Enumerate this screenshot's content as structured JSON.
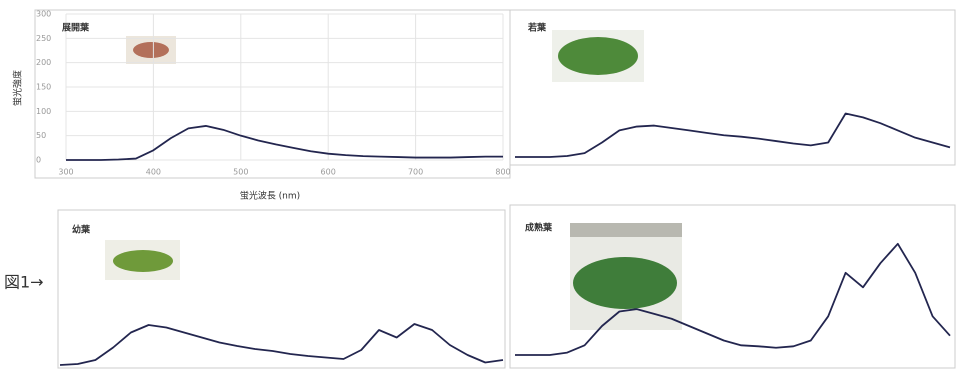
{
  "chart_data": [
    {
      "type": "line",
      "title": "展開葉",
      "x_label": "蛍光波長 (nm)",
      "y_label": "蛍光強度",
      "x": [
        300,
        320,
        340,
        360,
        380,
        400,
        420,
        440,
        460,
        480,
        500,
        520,
        540,
        560,
        580,
        600,
        620,
        640,
        660,
        680,
        700,
        720,
        740,
        760,
        780,
        800
      ],
      "series": [
        {
          "color": "#23264f",
          "values": [
            0,
            0,
            0,
            1,
            3,
            20,
            45,
            65,
            70,
            62,
            50,
            40,
            32,
            25,
            18,
            13,
            10,
            8,
            7,
            6,
            5,
            5,
            5,
            6,
            7,
            7
          ]
        }
      ],
      "xlim": [
        300,
        800
      ],
      "ylim": [
        0,
        300
      ],
      "xticks": [
        300,
        400,
        500,
        600,
        700,
        800
      ],
      "yticks": [
        0,
        50,
        100,
        150,
        200,
        250,
        300
      ],
      "grid": true
    },
    {
      "type": "line",
      "title": "若葉",
      "x": [
        300,
        320,
        340,
        360,
        380,
        400,
        420,
        440,
        460,
        480,
        500,
        520,
        540,
        560,
        580,
        600,
        620,
        640,
        660,
        680,
        700,
        720,
        740,
        760,
        780,
        800
      ],
      "series": [
        {
          "color": "#23264f",
          "values": [
            0,
            0,
            0,
            2,
            8,
            30,
            55,
            63,
            65,
            60,
            55,
            50,
            45,
            42,
            38,
            33,
            28,
            24,
            30,
            90,
            82,
            70,
            55,
            40,
            30,
            20
          ]
        }
      ],
      "xlim": [
        300,
        800
      ],
      "ylim": [
        0,
        300
      ]
    },
    {
      "type": "line",
      "title": "幼葉",
      "x": [
        300,
        320,
        340,
        360,
        380,
        400,
        420,
        440,
        460,
        480,
        500,
        520,
        540,
        560,
        580,
        600,
        620,
        640,
        660,
        680,
        700,
        720,
        740,
        760,
        780,
        800
      ],
      "series": [
        {
          "color": "#23264f",
          "values": [
            0,
            2,
            10,
            35,
            65,
            80,
            75,
            65,
            55,
            45,
            38,
            32,
            28,
            22,
            18,
            15,
            12,
            30,
            70,
            55,
            82,
            70,
            40,
            20,
            5,
            10
          ]
        }
      ],
      "xlim": [
        300,
        800
      ],
      "ylim": [
        0,
        300
      ]
    },
    {
      "type": "line",
      "title": "成熟葉",
      "x": [
        300,
        320,
        340,
        360,
        380,
        400,
        420,
        440,
        460,
        480,
        500,
        520,
        540,
        560,
        580,
        600,
        620,
        640,
        660,
        680,
        700,
        720,
        740,
        760,
        780,
        800
      ],
      "series": [
        {
          "color": "#23264f",
          "values": [
            0,
            0,
            0,
            5,
            20,
            60,
            90,
            95,
            85,
            75,
            60,
            45,
            30,
            20,
            18,
            15,
            18,
            30,
            80,
            170,
            140,
            190,
            230,
            170,
            80,
            40
          ]
        }
      ],
      "xlim": [
        300,
        800
      ],
      "ylim": [
        0,
        300
      ]
    }
  ],
  "annotation": "図1→"
}
